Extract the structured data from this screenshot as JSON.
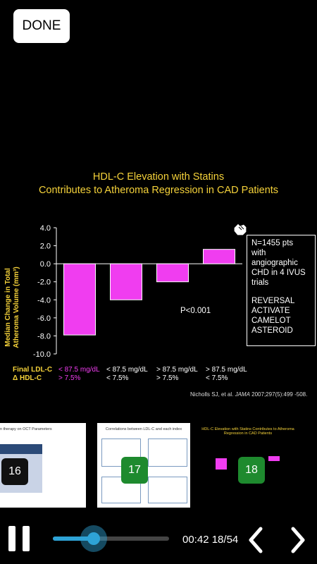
{
  "done_label": "DONE",
  "slide": {
    "title_line1": "HDL-C Elevation with Statins",
    "title_line2": "Contributes to Atheroma Regression in CAD Patients",
    "callout_lines": [
      "N=1455 pts",
      "with",
      "angiographic",
      "CHD in 4 IVUS",
      "trials",
      "",
      "REVERSAL",
      "ACTIVATE",
      "CAMELOT",
      "ASTEROID"
    ],
    "p_value": "P<0.001",
    "row1_label": "Final LDL-C",
    "row2_label": "Δ HDL-C",
    "row1_values": [
      "< 87.5 mg/dL",
      "< 87.5 mg/dL",
      "> 87.5 mg/dL",
      "> 87.5 mg/dL"
    ],
    "row2_values": [
      "> 7.5%",
      "< 7.5%",
      "> 7.5%",
      "< 7.5%"
    ],
    "citation_prefix": "Nicholls SJ, et al. ",
    "citation_journal": "JAMA",
    "citation_suffix": " 2007;297(5):499 -508."
  },
  "chart_data": {
    "type": "bar",
    "ylabel": "Median Change in Total Atheroma Volume (mm³)",
    "ylim": [
      -10,
      4
    ],
    "yticks": [
      "4.0",
      "2.0",
      "0.0",
      "-2.0",
      "-4.0",
      "-6.0",
      "-8.0",
      "-10.0"
    ],
    "categories": [
      "<87.5 / >7.5%",
      "<87.5 / <7.5%",
      ">87.5 / >7.5%",
      ">87.5 / <7.5%"
    ],
    "values": [
      -7.9,
      -4.0,
      -2.0,
      1.6
    ],
    "bar_color": "#f03df0",
    "grid": false
  },
  "thumbnails": [
    {
      "caption": "n therapy on OCT Parameters",
      "number": "16",
      "badge_color": "#111111"
    },
    {
      "caption": "Correlations between LDL-C and each index",
      "number": "17",
      "badge_color": "#1e8a2e"
    },
    {
      "caption": "HDL-C Elevation with Statins Contributes to Atheroma Regression in CAD Patients",
      "number": "18",
      "badge_color": "#1e8a2e"
    }
  ],
  "player": {
    "time": "00:42",
    "position": "18/54",
    "progress": 0.35,
    "accent": "#2ea3d6"
  }
}
